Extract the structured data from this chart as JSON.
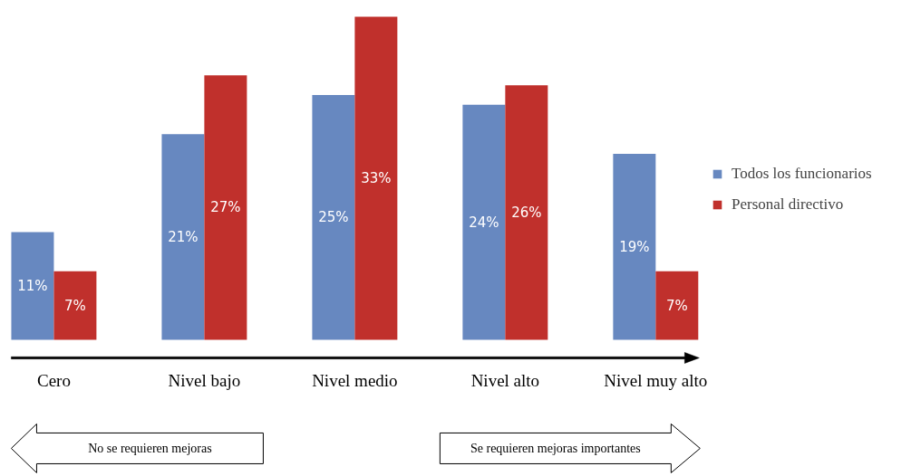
{
  "chart_data": {
    "type": "bar",
    "categories": [
      "Cero",
      "Nivel bajo",
      "Nivel medio",
      "Nivel alto",
      "Nivel muy alto"
    ],
    "series": [
      {
        "name": "Todos los funcionarios",
        "color": "#6788c0",
        "values": [
          11,
          21,
          25,
          24,
          19
        ],
        "value_labels": [
          "11%",
          "21%",
          "25%",
          "24%",
          "19%"
        ]
      },
      {
        "name": "Personal directivo",
        "color": "#c0302c",
        "values": [
          7,
          27,
          33,
          26,
          7
        ],
        "value_labels": [
          "7%",
          "27%",
          "33%",
          "26%",
          "7%"
        ]
      }
    ],
    "legend": "right",
    "annotations": [
      "No se requieren mejoras",
      "Se requieren mejoras importantes"
    ]
  }
}
